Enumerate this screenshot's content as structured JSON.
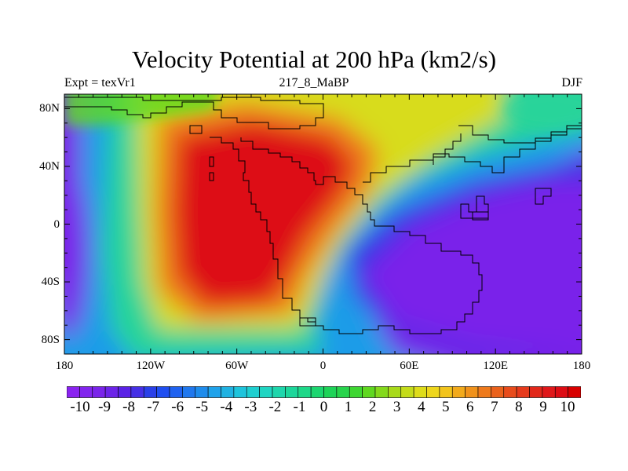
{
  "title": "Velocity Potential at 200 hPa (km2/s)",
  "subtitle_left": "Expt = texVr1",
  "subtitle_center": "217_8_MaBP",
  "subtitle_right": "DJF",
  "map": {
    "type": "contour-map",
    "variable": "Velocity Potential",
    "level": "200 hPa",
    "units": "km2/s",
    "lon_range": [
      -180,
      180
    ],
    "lat_range": [
      -90,
      90
    ],
    "x_ticks": [
      {
        "value": -180,
        "label": "180"
      },
      {
        "value": -120,
        "label": "120W"
      },
      {
        "value": -60,
        "label": "60W"
      },
      {
        "value": 0,
        "label": "0"
      },
      {
        "value": 60,
        "label": "60E"
      },
      {
        "value": 120,
        "label": "120E"
      },
      {
        "value": 180,
        "label": "180"
      }
    ],
    "y_ticks": [
      {
        "value": 80,
        "label": "80N"
      },
      {
        "value": 40,
        "label": "40N"
      },
      {
        "value": 0,
        "label": "0"
      },
      {
        "value": -40,
        "label": "40S"
      },
      {
        "value": -80,
        "label": "80S"
      }
    ],
    "features": [
      {
        "name": "maximum",
        "lon": -55,
        "lat": 10,
        "value": 10
      },
      {
        "name": "minimum",
        "lon": 110,
        "lat": -10,
        "value": -10
      },
      {
        "name": "minimum",
        "lon": -178,
        "lat": -15,
        "value": -9
      }
    ]
  },
  "colorbar": {
    "labels": [
      "-10",
      "-9",
      "-8",
      "-7",
      "-6",
      "-5",
      "-4",
      "-3",
      "-2",
      "-1",
      "0",
      "1",
      "2",
      "3",
      "4",
      "5",
      "6",
      "7",
      "8",
      "9",
      "10"
    ],
    "colors": [
      "#8a23f0",
      "#8225ee",
      "#7a24ea",
      "#6c24e8",
      "#5a22e6",
      "#4630e6",
      "#2a40e8",
      "#1f4ef0",
      "#1f62f0",
      "#2078ee",
      "#1e8cec",
      "#1fa2ea",
      "#20b2e2",
      "#1ec4dc",
      "#1ecfd0",
      "#1fd5c2",
      "#1ed6ac",
      "#1cd69a",
      "#1dd888",
      "#1cd670",
      "#1ed358",
      "#27d44c",
      "#3ed632",
      "#60d820",
      "#84d91c",
      "#a8da1a",
      "#c4dc1a",
      "#dedc1a",
      "#eed61c",
      "#f2c41c",
      "#f2aa1c",
      "#f0921c",
      "#ee7a1c",
      "#ea621c",
      "#e84c1c",
      "#e63a1c",
      "#e2281a",
      "#e0181a",
      "#dd0c14",
      "#d80000"
    ]
  }
}
